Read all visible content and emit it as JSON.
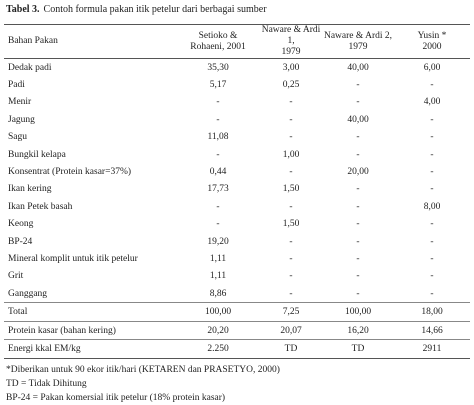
{
  "caption": {
    "label": "Tabel 3.",
    "text": "Contoh formula pakan itik petelur dari berbagai sumber"
  },
  "table": {
    "header": [
      [
        "Bahan Pakan"
      ],
      [
        "Setioko &",
        "Rohaeni, 2001"
      ],
      [
        "Naware & Ardi 1,",
        "1979"
      ],
      [
        "Naware & Ardi 2,",
        "1979"
      ],
      [
        "Yusin *",
        "2000"
      ]
    ],
    "rows": [
      [
        "Dedak padi",
        "35,30",
        "3,00",
        "40,00",
        "6,00"
      ],
      [
        "Padi",
        "5,17",
        "0,25",
        "-",
        "-"
      ],
      [
        "Menir",
        "-",
        "-",
        "-",
        "4,00"
      ],
      [
        "Jagung",
        "-",
        "-",
        "40,00",
        "-"
      ],
      [
        "Sagu",
        "11,08",
        "-",
        "-",
        "-"
      ],
      [
        "Bungkil kelapa",
        "-",
        "1,00",
        "-",
        "-"
      ],
      [
        "Konsentrat (Protein kasar=37%)",
        "0,44",
        "-",
        "20,00",
        "-"
      ],
      [
        "Ikan kering",
        "17,73",
        "1,50",
        "-",
        "-"
      ],
      [
        "Ikan Petek basah",
        "-",
        "-",
        "-",
        "8,00"
      ],
      [
        "Keong",
        "-",
        "1,50",
        "-",
        "-"
      ],
      [
        "BP-24",
        "19,20",
        "-",
        "-",
        "-"
      ],
      [
        "Mineral komplit untuk itik petelur",
        "1,11",
        "-",
        "-",
        "-"
      ],
      [
        "Grit",
        "1,11",
        "-",
        "-",
        "-"
      ],
      [
        "Ganggang",
        "8,86",
        "-",
        "-",
        "-"
      ],
      [
        "Total",
        "100,00",
        "7,25",
        "100,00",
        "18,00"
      ],
      [
        "Protein kasar (bahan kering)",
        "20,20",
        "20,07",
        "16,20",
        "14,66"
      ],
      [
        "Energi kkal EM/kg",
        "2.250",
        "TD",
        "TD",
        "2911"
      ]
    ]
  },
  "footnotes": [
    "*Diberikan untuk 90 ekor itik/hari (KETAREN dan PRASETYO, 2000)",
    "TD = Tidak Dihitung",
    "BP-24 = Pakan komersial itik petelur (18% protein kasar)"
  ]
}
